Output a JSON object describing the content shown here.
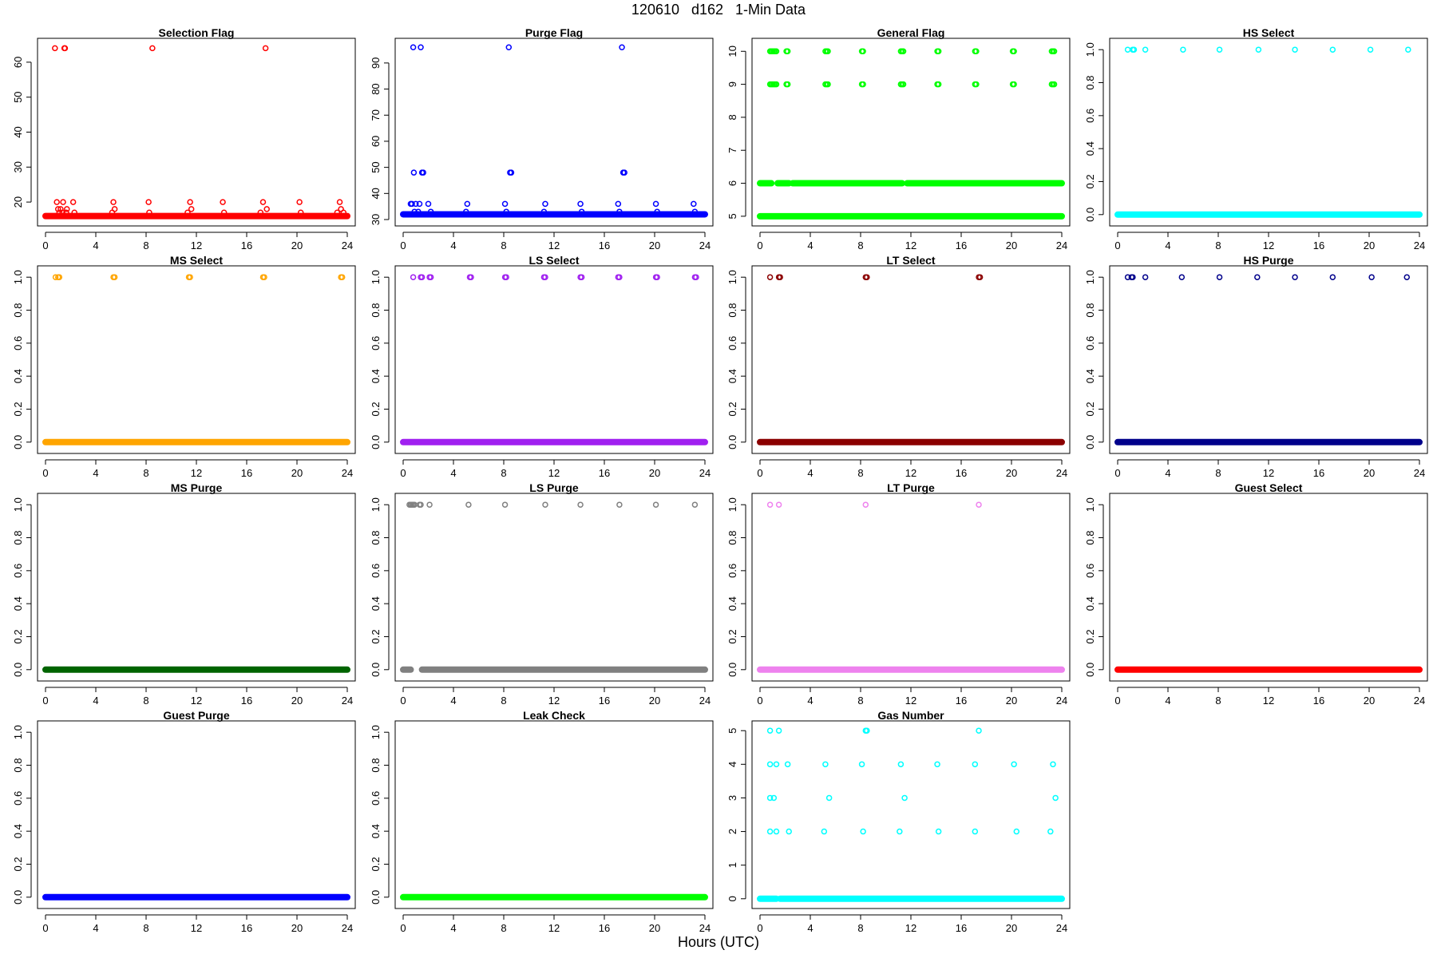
{
  "figure": {
    "title": "120610   d162   1-Min Data",
    "xlabel": "Hours (UTC)"
  },
  "chart_data": [
    {
      "type": "scatter",
      "title": "Selection Flag",
      "color": "#ff0000",
      "xlim": [
        0,
        24
      ],
      "ylim": [
        15,
        65
      ],
      "xticks": [
        0,
        4,
        8,
        12,
        16,
        20,
        24
      ],
      "yticks": [
        20,
        30,
        40,
        50,
        60
      ],
      "baseline": [
        [
          0,
          24,
          16
        ]
      ],
      "points": [
        [
          0.75,
          64
        ],
        [
          0.8,
          16
        ],
        [
          0.9,
          20
        ],
        [
          1.0,
          18
        ],
        [
          1.1,
          17
        ],
        [
          1.2,
          18
        ],
        [
          1.35,
          17
        ],
        [
          1.4,
          20
        ],
        [
          1.5,
          64
        ],
        [
          1.55,
          64
        ],
        [
          1.65,
          17
        ],
        [
          1.7,
          18
        ],
        [
          2.2,
          20
        ],
        [
          2.3,
          17
        ],
        [
          5.3,
          17
        ],
        [
          5.4,
          20
        ],
        [
          5.5,
          18
        ],
        [
          8.2,
          20
        ],
        [
          8.25,
          17
        ],
        [
          8.5,
          64
        ],
        [
          11.3,
          17
        ],
        [
          11.5,
          20
        ],
        [
          11.6,
          18
        ],
        [
          14.1,
          20
        ],
        [
          14.2,
          17
        ],
        [
          17.1,
          17
        ],
        [
          17.3,
          20
        ],
        [
          17.5,
          64
        ],
        [
          17.6,
          18
        ],
        [
          20.2,
          20
        ],
        [
          20.3,
          17
        ],
        [
          23.2,
          17
        ],
        [
          23.4,
          20
        ],
        [
          23.5,
          18
        ],
        [
          23.7,
          17
        ]
      ]
    },
    {
      "type": "scatter",
      "title": "Purge Flag",
      "color": "#0000ff",
      "xlim": [
        0,
        24
      ],
      "ylim": [
        30,
        97
      ],
      "xticks": [
        0,
        4,
        8,
        12,
        16,
        20,
        24
      ],
      "yticks": [
        30,
        40,
        50,
        60,
        70,
        80,
        90
      ],
      "baseline": [
        [
          0,
          24,
          32
        ]
      ],
      "points": [
        [
          0.6,
          36
        ],
        [
          0.7,
          36
        ],
        [
          0.8,
          96
        ],
        [
          0.85,
          48
        ],
        [
          0.9,
          33
        ],
        [
          1.0,
          36
        ],
        [
          1.2,
          33
        ],
        [
          1.3,
          36
        ],
        [
          1.4,
          96
        ],
        [
          1.5,
          48
        ],
        [
          1.6,
          48
        ],
        [
          2.0,
          36
        ],
        [
          2.2,
          33
        ],
        [
          5.1,
          36
        ],
        [
          5.0,
          33
        ],
        [
          8.1,
          36
        ],
        [
          8.2,
          33
        ],
        [
          8.4,
          96
        ],
        [
          8.5,
          48
        ],
        [
          8.6,
          48
        ],
        [
          11.3,
          36
        ],
        [
          11.2,
          33
        ],
        [
          14.1,
          36
        ],
        [
          14.2,
          33
        ],
        [
          17.1,
          36
        ],
        [
          17.2,
          33
        ],
        [
          17.4,
          96
        ],
        [
          17.5,
          48
        ],
        [
          17.6,
          48
        ],
        [
          20.1,
          36
        ],
        [
          20.2,
          33
        ],
        [
          23.1,
          36
        ],
        [
          23.2,
          33
        ]
      ]
    },
    {
      "type": "scatter",
      "title": "General Flag",
      "color": "#00ff00",
      "xlim": [
        0,
        24
      ],
      "ylim": [
        4.9,
        10.2
      ],
      "xticks": [
        0,
        4,
        8,
        12,
        16,
        20,
        24
      ],
      "yticks": [
        5,
        6,
        7,
        8,
        9,
        10
      ],
      "baseline": [
        [
          0,
          24,
          5
        ],
        [
          0,
          0.9,
          6
        ],
        [
          1.4,
          2.3,
          6
        ],
        [
          2.6,
          11.3,
          6
        ],
        [
          11.7,
          24,
          6
        ]
      ],
      "points": [
        [
          0.8,
          10
        ],
        [
          0.9,
          10
        ],
        [
          1.0,
          10
        ],
        [
          1.1,
          10
        ],
        [
          1.2,
          10
        ],
        [
          1.3,
          10
        ],
        [
          0.8,
          9
        ],
        [
          0.9,
          9
        ],
        [
          1.0,
          9
        ],
        [
          1.1,
          9
        ],
        [
          1.2,
          9
        ],
        [
          1.3,
          9
        ],
        [
          2.1,
          10
        ],
        [
          2.2,
          10
        ],
        [
          2.1,
          9
        ],
        [
          2.2,
          9
        ],
        [
          5.2,
          10
        ],
        [
          5.3,
          10
        ],
        [
          5.4,
          10
        ],
        [
          5.2,
          9
        ],
        [
          5.3,
          9
        ],
        [
          5.4,
          9
        ],
        [
          8.1,
          10
        ],
        [
          8.2,
          10
        ],
        [
          8.1,
          9
        ],
        [
          8.2,
          9
        ],
        [
          11.2,
          10
        ],
        [
          11.3,
          10
        ],
        [
          11.4,
          10
        ],
        [
          11.2,
          9
        ],
        [
          11.3,
          9
        ],
        [
          11.4,
          9
        ],
        [
          14.1,
          10
        ],
        [
          14.2,
          10
        ],
        [
          14.1,
          9
        ],
        [
          14.2,
          9
        ],
        [
          17.1,
          10
        ],
        [
          17.2,
          10
        ],
        [
          17.1,
          9
        ],
        [
          17.2,
          9
        ],
        [
          20.1,
          10
        ],
        [
          20.2,
          10
        ],
        [
          20.1,
          9
        ],
        [
          20.2,
          9
        ],
        [
          23.2,
          10
        ],
        [
          23.3,
          10
        ],
        [
          23.4,
          10
        ],
        [
          23.2,
          9
        ],
        [
          23.3,
          9
        ],
        [
          23.4,
          9
        ]
      ]
    },
    {
      "type": "scatter",
      "title": "HS Select",
      "color": "#00ffff",
      "xlim": [
        0,
        24
      ],
      "ylim": [
        -0.03,
        1.03
      ],
      "xticks": [
        0,
        4,
        8,
        12,
        16,
        20,
        24
      ],
      "yticks": [
        0.0,
        0.2,
        0.4,
        0.6,
        0.8,
        1.0
      ],
      "baseline": [
        [
          0,
          24,
          0
        ]
      ],
      "points": [
        [
          0.8,
          1
        ],
        [
          1.2,
          1
        ],
        [
          1.3,
          1
        ],
        [
          2.2,
          1
        ],
        [
          5.2,
          1
        ],
        [
          8.1,
          1
        ],
        [
          11.2,
          1
        ],
        [
          14.1,
          1
        ],
        [
          17.1,
          1
        ],
        [
          20.1,
          1
        ],
        [
          23.1,
          1
        ]
      ]
    },
    {
      "type": "scatter",
      "title": "MS Select",
      "color": "#ffa500",
      "xlim": [
        0,
        24
      ],
      "ylim": [
        -0.03,
        1.03
      ],
      "xticks": [
        0,
        4,
        8,
        12,
        16,
        20,
        24
      ],
      "yticks": [
        0.0,
        0.2,
        0.4,
        0.6,
        0.8,
        1.0
      ],
      "baseline": [
        [
          0,
          24,
          0
        ]
      ],
      "points": [
        [
          0.8,
          1
        ],
        [
          1.0,
          1
        ],
        [
          1.1,
          1
        ],
        [
          5.4,
          1
        ],
        [
          5.5,
          1
        ],
        [
          11.4,
          1
        ],
        [
          11.5,
          1
        ],
        [
          17.3,
          1
        ],
        [
          17.4,
          1
        ],
        [
          23.5,
          1
        ],
        [
          23.6,
          1
        ]
      ]
    },
    {
      "type": "scatter",
      "title": "LS Select",
      "color": "#a020f0",
      "xlim": [
        0,
        24
      ],
      "ylim": [
        -0.03,
        1.03
      ],
      "xticks": [
        0,
        4,
        8,
        12,
        16,
        20,
        24
      ],
      "yticks": [
        0.0,
        0.2,
        0.4,
        0.6,
        0.8,
        1.0
      ],
      "baseline": [
        [
          0,
          24,
          0
        ]
      ],
      "points": [
        [
          0.8,
          1
        ],
        [
          1.4,
          1
        ],
        [
          1.5,
          1
        ],
        [
          2.1,
          1
        ],
        [
          2.2,
          1
        ],
        [
          5.3,
          1
        ],
        [
          5.4,
          1
        ],
        [
          8.1,
          1
        ],
        [
          8.2,
          1
        ],
        [
          11.2,
          1
        ],
        [
          11.3,
          1
        ],
        [
          14.1,
          1
        ],
        [
          14.2,
          1
        ],
        [
          17.1,
          1
        ],
        [
          17.2,
          1
        ],
        [
          20.1,
          1
        ],
        [
          20.2,
          1
        ],
        [
          23.2,
          1
        ],
        [
          23.3,
          1
        ]
      ]
    },
    {
      "type": "scatter",
      "title": "LT Select",
      "color": "#8b0000",
      "xlim": [
        0,
        24
      ],
      "ylim": [
        -0.03,
        1.03
      ],
      "xticks": [
        0,
        4,
        8,
        12,
        16,
        20,
        24
      ],
      "yticks": [
        0.0,
        0.2,
        0.4,
        0.6,
        0.8,
        1.0
      ],
      "baseline": [
        [
          0,
          24,
          0
        ]
      ],
      "points": [
        [
          0.8,
          1
        ],
        [
          1.5,
          1
        ],
        [
          1.6,
          1
        ],
        [
          8.4,
          1
        ],
        [
          8.5,
          1
        ],
        [
          17.4,
          1
        ],
        [
          17.5,
          1
        ]
      ]
    },
    {
      "type": "scatter",
      "title": "HS Purge",
      "color": "#00008b",
      "xlim": [
        0,
        24
      ],
      "ylim": [
        -0.03,
        1.03
      ],
      "xticks": [
        0,
        4,
        8,
        12,
        16,
        20,
        24
      ],
      "yticks": [
        0.0,
        0.2,
        0.4,
        0.6,
        0.8,
        1.0
      ],
      "baseline": [
        [
          0,
          24,
          0
        ]
      ],
      "points": [
        [
          0.8,
          1
        ],
        [
          1.1,
          1
        ],
        [
          1.2,
          1
        ],
        [
          2.2,
          1
        ],
        [
          5.1,
          1
        ],
        [
          8.1,
          1
        ],
        [
          11.1,
          1
        ],
        [
          14.1,
          1
        ],
        [
          17.1,
          1
        ],
        [
          20.2,
          1
        ],
        [
          23.0,
          1
        ]
      ]
    },
    {
      "type": "scatter",
      "title": "MS Purge",
      "color": "#006400",
      "xlim": [
        0,
        24
      ],
      "ylim": [
        -0.03,
        1.03
      ],
      "xticks": [
        0,
        4,
        8,
        12,
        16,
        20,
        24
      ],
      "yticks": [
        0.0,
        0.2,
        0.4,
        0.6,
        0.8,
        1.0
      ],
      "baseline": [
        [
          0,
          24,
          0
        ]
      ],
      "points": []
    },
    {
      "type": "scatter",
      "title": "LS Purge",
      "color": "#808080",
      "xlim": [
        0,
        24
      ],
      "ylim": [
        -0.03,
        1.03
      ],
      "xticks": [
        0,
        4,
        8,
        12,
        16,
        20,
        24
      ],
      "yticks": [
        0.0,
        0.2,
        0.4,
        0.6,
        0.8,
        1.0
      ],
      "baseline": [
        [
          0,
          0.6,
          0
        ],
        [
          1.5,
          24,
          0
        ]
      ],
      "points": [
        [
          0.5,
          1
        ],
        [
          0.6,
          1
        ],
        [
          0.7,
          1
        ],
        [
          0.8,
          1
        ],
        [
          0.9,
          1
        ],
        [
          1.3,
          1
        ],
        [
          1.4,
          1
        ],
        [
          2.1,
          1
        ],
        [
          5.2,
          1
        ],
        [
          8.1,
          1
        ],
        [
          11.3,
          1
        ],
        [
          14.1,
          1
        ],
        [
          17.2,
          1
        ],
        [
          20.1,
          1
        ],
        [
          23.2,
          1
        ]
      ]
    },
    {
      "type": "scatter",
      "title": "LT Purge",
      "color": "#ee82ee",
      "xlim": [
        0,
        24
      ],
      "ylim": [
        -0.03,
        1.03
      ],
      "xticks": [
        0,
        4,
        8,
        12,
        16,
        20,
        24
      ],
      "yticks": [
        0.0,
        0.2,
        0.4,
        0.6,
        0.8,
        1.0
      ],
      "baseline": [
        [
          0,
          24,
          0
        ]
      ],
      "points": [
        [
          0.8,
          1
        ],
        [
          1.5,
          1
        ],
        [
          8.4,
          1
        ],
        [
          17.4,
          1
        ]
      ]
    },
    {
      "type": "scatter",
      "title": "Guest Select",
      "color": "#ff0000",
      "xlim": [
        0,
        24
      ],
      "ylim": [
        -0.03,
        1.03
      ],
      "xticks": [
        0,
        4,
        8,
        12,
        16,
        20,
        24
      ],
      "yticks": [
        0.0,
        0.2,
        0.4,
        0.6,
        0.8,
        1.0
      ],
      "baseline": [
        [
          0,
          24,
          0
        ]
      ],
      "points": []
    },
    {
      "type": "scatter",
      "title": "Guest Purge",
      "color": "#0000ff",
      "xlim": [
        0,
        24
      ],
      "ylim": [
        -0.03,
        1.03
      ],
      "xticks": [
        0,
        4,
        8,
        12,
        16,
        20,
        24
      ],
      "yticks": [
        0.0,
        0.2,
        0.4,
        0.6,
        0.8,
        1.0
      ],
      "baseline": [
        [
          0,
          24,
          0
        ]
      ],
      "points": []
    },
    {
      "type": "scatter",
      "title": "Leak Check",
      "color": "#00ff00",
      "xlim": [
        0,
        24
      ],
      "ylim": [
        -0.03,
        1.03
      ],
      "xticks": [
        0,
        4,
        8,
        12,
        16,
        20,
        24
      ],
      "yticks": [
        0.0,
        0.2,
        0.4,
        0.6,
        0.8,
        1.0
      ],
      "baseline": [
        [
          0,
          24,
          0
        ]
      ],
      "points": []
    },
    {
      "type": "scatter",
      "title": "Gas Number",
      "color": "#00ffff",
      "xlim": [
        0,
        24
      ],
      "ylim": [
        -0.1,
        5.1
      ],
      "xticks": [
        0,
        4,
        8,
        12,
        16,
        20,
        24
      ],
      "yticks": [
        0,
        1,
        2,
        3,
        4,
        5
      ],
      "baseline": [
        [
          0,
          1.3,
          0
        ],
        [
          1.6,
          24,
          0
        ]
      ],
      "points": [
        [
          0.8,
          5
        ],
        [
          1.5,
          5
        ],
        [
          0.8,
          4
        ],
        [
          1.3,
          4
        ],
        [
          2.2,
          4
        ],
        [
          0.8,
          3
        ],
        [
          1.1,
          3
        ],
        [
          0.8,
          2
        ],
        [
          1.3,
          2
        ],
        [
          2.3,
          2
        ],
        [
          5.2,
          4
        ],
        [
          5.5,
          3
        ],
        [
          5.1,
          2
        ],
        [
          8.1,
          4
        ],
        [
          8.4,
          5
        ],
        [
          8.5,
          5
        ],
        [
          8.2,
          2
        ],
        [
          11.2,
          4
        ],
        [
          11.5,
          3
        ],
        [
          11.1,
          2
        ],
        [
          14.1,
          4
        ],
        [
          14.2,
          2
        ],
        [
          17.1,
          4
        ],
        [
          17.4,
          5
        ],
        [
          17.1,
          2
        ],
        [
          20.2,
          4
        ],
        [
          20.4,
          2
        ],
        [
          23.3,
          4
        ],
        [
          23.5,
          3
        ],
        [
          23.1,
          2
        ]
      ]
    }
  ]
}
